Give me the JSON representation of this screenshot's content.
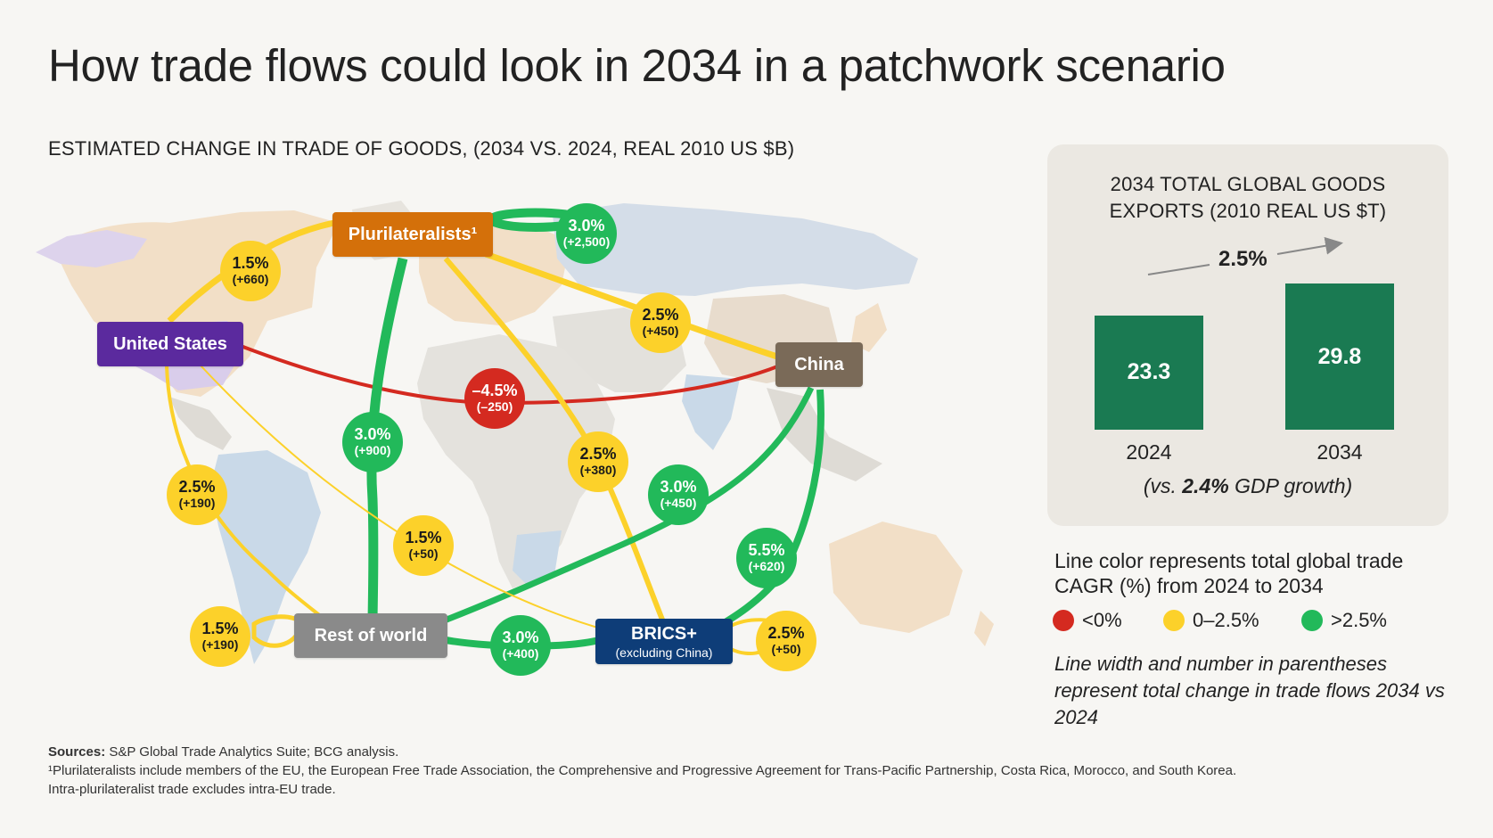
{
  "title": "How trade flows could look in 2034 in a patchwork scenario",
  "subtitle": "ESTIMATED CHANGE IN TRADE OF GOODS, (2034 VS. 2024, REAL 2010 US $B)",
  "colors": {
    "red": "#d42a20",
    "yellow": "#fcd12a",
    "green": "#22b95a"
  },
  "nodes": {
    "plurilateralists": {
      "label": "Plurilateralists¹",
      "color": "#d4700a"
    },
    "united_states": {
      "label": "United States",
      "color": "#5b2a9e"
    },
    "china": {
      "label": "China",
      "color": "#7a6a58"
    },
    "rest_of_world": {
      "label": "Rest of world",
      "color": "#8a8a8a"
    },
    "brics": {
      "label": "BRICS+",
      "sublabel": "(excluding China)",
      "color": "#0e3d78"
    }
  },
  "flows": [
    {
      "id": "us-plurilateralists",
      "pct": "1.5%",
      "amt": "(+660)",
      "category": "yellow"
    },
    {
      "id": "intra-plurilateralists",
      "pct": "3.0%",
      "amt": "(+2,500)",
      "category": "green"
    },
    {
      "id": "plurilateralists-china",
      "pct": "2.5%",
      "amt": "(+450)",
      "category": "yellow"
    },
    {
      "id": "us-china",
      "pct": "–4.5%",
      "amt": "(–250)",
      "category": "red"
    },
    {
      "id": "plurilateralists-row",
      "pct": "3.0%",
      "amt": "(+900)",
      "category": "green"
    },
    {
      "id": "plurilateralists-brics",
      "pct": "2.5%",
      "amt": "(+380)",
      "category": "yellow"
    },
    {
      "id": "china-row",
      "pct": "3.0%",
      "amt": "(+450)",
      "category": "green"
    },
    {
      "id": "us-row",
      "pct": "2.5%",
      "amt": "(+190)",
      "category": "yellow"
    },
    {
      "id": "us-brics",
      "pct": "1.5%",
      "amt": "(+50)",
      "category": "yellow"
    },
    {
      "id": "china-brics",
      "pct": "5.5%",
      "amt": "(+620)",
      "category": "green"
    },
    {
      "id": "intra-row",
      "pct": "1.5%",
      "amt": "(+190)",
      "category": "yellow"
    },
    {
      "id": "row-brics",
      "pct": "3.0%",
      "amt": "(+400)",
      "category": "green"
    },
    {
      "id": "intra-brics",
      "pct": "2.5%",
      "amt": "(+50)",
      "category": "yellow"
    }
  ],
  "exports_panel": {
    "title_line1": "2034 TOTAL GLOBAL GOODS",
    "title_line2": "EXPORTS (2010 REAL US $T)",
    "cagr": "2.5%",
    "gdp_note_prefix": "(vs. ",
    "gdp_note_value": "2.4%",
    "gdp_note_suffix": " GDP growth)"
  },
  "chart_data": {
    "type": "bar",
    "categories": [
      "2024",
      "2034"
    ],
    "values": [
      23.3,
      29.8
    ],
    "value_labels": [
      "23.3",
      "29.8"
    ],
    "title": "2034 TOTAL GLOBAL GOODS EXPORTS (2010 REAL US $T)",
    "annotation": "2.5%"
  },
  "legend": {
    "title": "Line color represents total global trade CAGR (%) from 2024 to 2034",
    "items": [
      {
        "label": "<0%",
        "color": "#d42a20"
      },
      {
        "label": "0–2.5%",
        "color": "#fcd12a"
      },
      {
        "label": ">2.5%",
        "color": "#22b95a"
      }
    ],
    "note": "Line width and number in parentheses represent total change in trade flows 2034 vs 2024"
  },
  "footer": {
    "sources_label": "Sources:",
    "sources_text": " S&P Global Trade Analytics Suite; BCG analysis.",
    "footnote_1": "¹Plurilateralists include members of the EU, the European Free Trade Association, the Comprehensive and Progressive Agreement for Trans-Pacific Partnership, Costa Rica, Morocco, and South Korea.",
    "footnote_2": "Intra-plurilateralist trade excludes intra-EU trade."
  }
}
